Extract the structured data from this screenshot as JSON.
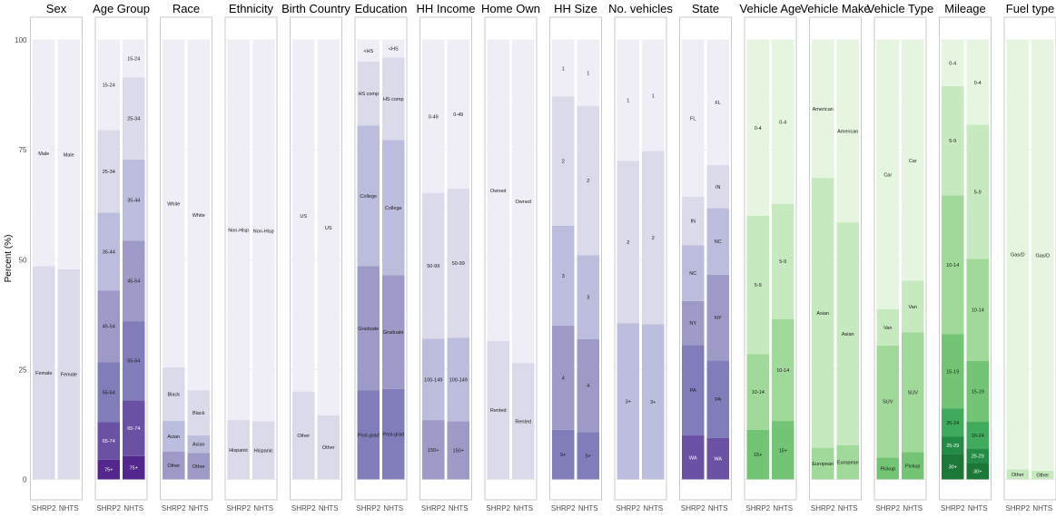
{
  "chart_data": {
    "type": "bar",
    "stacked": true,
    "ylabel": "Percent (%)",
    "ylim": [
      0,
      100
    ],
    "yticks": [
      0,
      25,
      50,
      75,
      100
    ],
    "grid": true,
    "groups": [
      "SHRP2",
      "NHTS"
    ],
    "panels": [
      {
        "title": "Sex",
        "palette": "purple",
        "segments": [
          {
            "label": "Female",
            "values": [
              48.5,
              47.8
            ]
          },
          {
            "label": "Male",
            "values": [
              51.5,
              52.2
            ]
          }
        ]
      },
      {
        "title": "Age Group",
        "palette": "purple",
        "segments": [
          {
            "label": "75+",
            "values": [
              4.5,
              5.3
            ]
          },
          {
            "label": "65-74",
            "values": [
              8.5,
              12.7
            ]
          },
          {
            "label": "55-64",
            "values": [
              13.7,
              18.0
            ]
          },
          {
            "label": "45-54",
            "values": [
              16.3,
              18.3
            ]
          },
          {
            "label": "35-44",
            "values": [
              17.7,
              18.5
            ]
          },
          {
            "label": "25-34",
            "values": [
              18.8,
              18.7
            ]
          },
          {
            "label": "15-24",
            "values": [
              20.5,
              8.5
            ]
          }
        ]
      },
      {
        "title": "Race",
        "palette": "purple",
        "segments": [
          {
            "label": "Other",
            "values": [
              6.3,
              6.0
            ]
          },
          {
            "label": "Asian",
            "values": [
              7.0,
              4.0
            ]
          },
          {
            "label": "Black",
            "values": [
              12.2,
              10.3
            ]
          },
          {
            "label": "White",
            "values": [
              74.5,
              79.7
            ]
          }
        ]
      },
      {
        "title": "Ethnicity",
        "palette": "purple",
        "segments": [
          {
            "label": "Hispanic",
            "values": [
              13.5,
              13.2
            ]
          },
          {
            "label": "Non-Hisp",
            "values": [
              86.5,
              86.8
            ]
          }
        ]
      },
      {
        "title": "Birth Country",
        "palette": "purple",
        "segments": [
          {
            "label": "Other",
            "values": [
              20.0,
              14.6
            ]
          },
          {
            "label": "US",
            "values": [
              80.0,
              85.4
            ]
          }
        ]
      },
      {
        "title": "Education",
        "palette": "purple",
        "segments": [
          {
            "label": "Post-grad",
            "values": [
              20.3,
              20.6
            ]
          },
          {
            "label": "Graduate",
            "values": [
              28.2,
              25.9
            ]
          },
          {
            "label": "College",
            "values": [
              32.0,
              30.7
            ]
          },
          {
            "label": "HS comp",
            "values": [
              14.6,
              18.8
            ]
          },
          {
            "label": "<HS",
            "values": [
              4.9,
              4.0
            ]
          }
        ]
      },
      {
        "title": "HH Income",
        "palette": "purple",
        "segments": [
          {
            "label": "150+",
            "values": [
              13.5,
              13.2
            ]
          },
          {
            "label": "100-149",
            "values": [
              18.5,
              19.0
            ]
          },
          {
            "label": "50-99",
            "values": [
              33.2,
              34.0
            ]
          },
          {
            "label": "0-49",
            "values": [
              34.8,
              33.8
            ]
          }
        ]
      },
      {
        "title": "Home Own",
        "palette": "purple",
        "segments": [
          {
            "label": "Rented",
            "values": [
              31.5,
              26.5
            ]
          },
          {
            "label": "Owned",
            "values": [
              68.5,
              73.5
            ]
          }
        ]
      },
      {
        "title": "HH Size",
        "palette": "purple",
        "segments": [
          {
            "label": "5+",
            "values": [
              11.3,
              10.8
            ]
          },
          {
            "label": "4",
            "values": [
              23.7,
              21.1
            ]
          },
          {
            "label": "3",
            "values": [
              22.7,
              19.1
            ]
          },
          {
            "label": "2",
            "values": [
              29.4,
              34.0
            ]
          },
          {
            "label": "1",
            "values": [
              12.9,
              15.0
            ]
          }
        ]
      },
      {
        "title": "No. vehicles",
        "palette": "purple",
        "segments": [
          {
            "label": "3+",
            "values": [
              35.5,
              35.3
            ]
          },
          {
            "label": "2",
            "values": [
              37.0,
              39.4
            ]
          },
          {
            "label": "1",
            "values": [
              27.5,
              25.3
            ]
          }
        ]
      },
      {
        "title": "State",
        "palette": "purple",
        "segments": [
          {
            "label": "WA",
            "values": [
              10.0,
              9.4
            ]
          },
          {
            "label": "PA",
            "values": [
              20.6,
              17.7
            ]
          },
          {
            "label": "NY",
            "values": [
              10.0,
              19.5
            ]
          },
          {
            "label": "NC",
            "values": [
              12.7,
              15.1
            ]
          },
          {
            "label": "IN",
            "values": [
              11.0,
              9.8
            ]
          },
          {
            "label": "FL",
            "values": [
              35.7,
              28.5
            ]
          }
        ]
      },
      {
        "title": "Vehicle Age",
        "palette": "green",
        "segments": [
          {
            "label": "15+",
            "values": [
              11.3,
              13.3
            ]
          },
          {
            "label": "10-14",
            "values": [
              17.2,
              23.2
            ]
          },
          {
            "label": "5-9",
            "values": [
              31.5,
              26.2
            ]
          },
          {
            "label": "0-4",
            "values": [
              40.0,
              37.3
            ]
          }
        ]
      },
      {
        "title": "Vehicle Make",
        "palette": "green",
        "segments": [
          {
            "label": "European",
            "values": [
              7.2,
              7.8
            ]
          },
          {
            "label": "Asian",
            "values": [
              61.4,
              50.7
            ]
          },
          {
            "label": "American",
            "values": [
              31.4,
              41.5
            ]
          }
        ]
      },
      {
        "title": "Vehicle Type",
        "palette": "green",
        "segments": [
          {
            "label": "Pickup",
            "values": [
              5.0,
              6.2
            ]
          },
          {
            "label": "SUV",
            "values": [
              25.5,
              27.3
            ]
          },
          {
            "label": "Van",
            "values": [
              8.2,
              11.7
            ]
          },
          {
            "label": "Car",
            "values": [
              61.3,
              54.8
            ]
          }
        ]
      },
      {
        "title": "Mileage",
        "palette": "green",
        "segments": [
          {
            "label": "30+",
            "values": [
              5.8,
              3.8
            ]
          },
          {
            "label": "25-29",
            "values": [
              3.9,
              3.2
            ]
          },
          {
            "label": "20-24",
            "values": [
              6.4,
              6.1
            ]
          },
          {
            "label": "15-19",
            "values": [
              17.0,
              13.9
            ]
          },
          {
            "label": "10-14",
            "values": [
              31.5,
              23.2
            ]
          },
          {
            "label": "5-9",
            "values": [
              24.9,
              30.5
            ]
          },
          {
            "label": "0-4",
            "values": [
              10.5,
              19.3
            ]
          }
        ]
      },
      {
        "title": "Fuel type",
        "palette": "green",
        "segments": [
          {
            "label": "Other",
            "values": [
              2.3,
              2.0
            ]
          },
          {
            "label": "Gas/D",
            "values": [
              97.7,
              98.0
            ]
          }
        ]
      }
    ],
    "palettes": {
      "purple": [
        "#54278f",
        "#6a51a3",
        "#807dba",
        "#9e9ac8",
        "#bcbddc",
        "#dadaeb",
        "#efedf5"
      ],
      "green": [
        "#00441b",
        "#1b7837",
        "#238b45",
        "#41ab5d",
        "#74c476",
        "#a1d99b",
        "#c7e9c0",
        "#e5f5e0"
      ]
    }
  }
}
